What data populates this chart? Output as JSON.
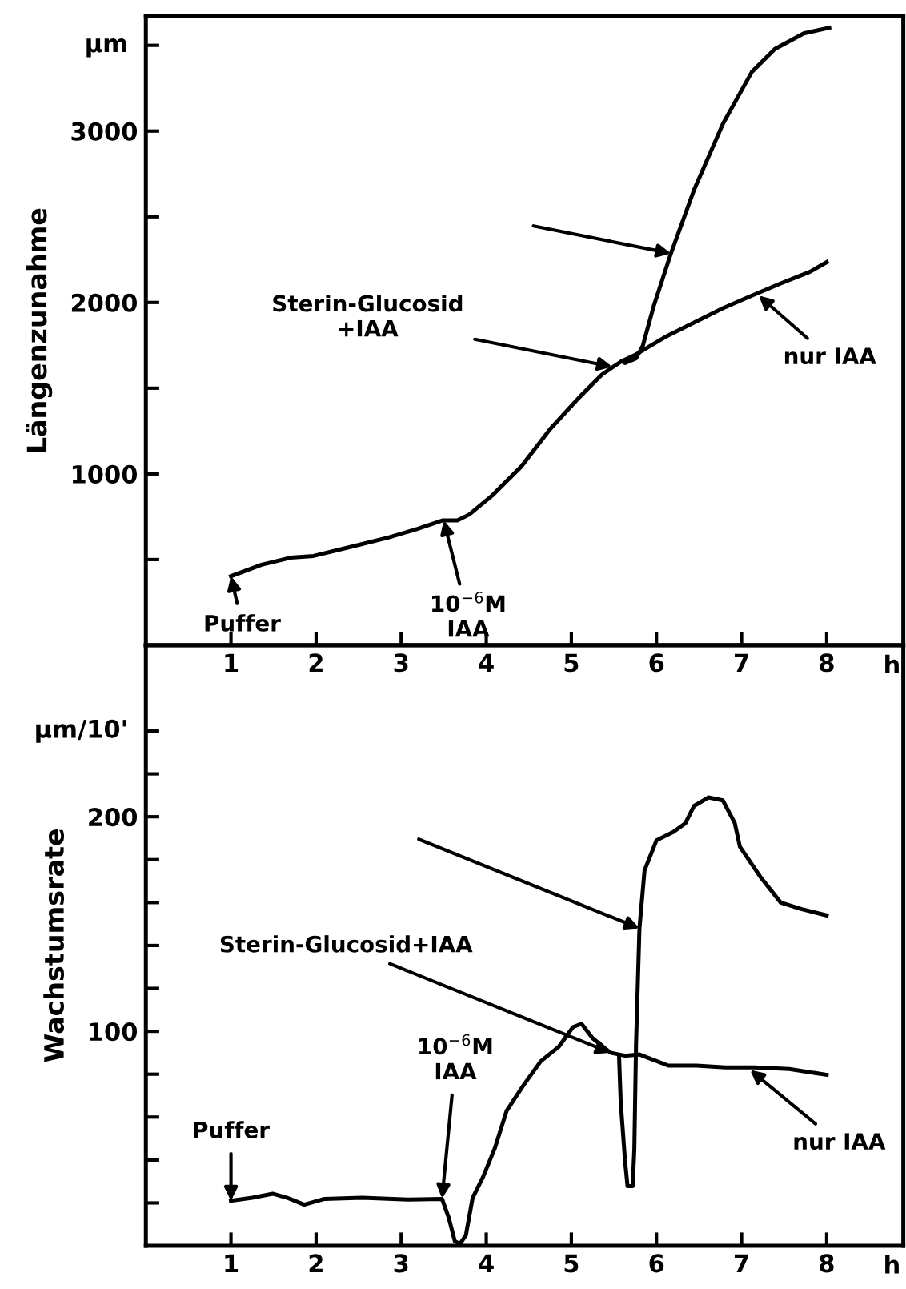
{
  "chart_data": [
    {
      "type": "line",
      "ylabel": "Längenzunahme",
      "xlabel": "h",
      "xlim": [
        0,
        8.9
      ],
      "xticks": [
        1,
        2,
        3,
        4,
        5,
        6,
        7,
        8
      ],
      "ylim": [
        0,
        3670
      ],
      "yticks": [
        {
          "value": 500,
          "label": null
        },
        1000,
        {
          "value": 1500,
          "label": null
        },
        2000,
        {
          "value": 2500,
          "label": null
        },
        3000,
        {
          "value": 3500,
          "label": null
        }
      ],
      "grid": false,
      "series": [
        {
          "color": "#000000",
          "x": [
            1,
            1.36,
            1.7,
            1.97,
            2.38,
            2.85,
            3.19,
            3.49,
            3.66,
            3.8,
            4.07,
            4.41,
            4.75,
            5.09,
            5.36,
            5.59,
            5.76,
            6.1,
            6.44,
            6.78,
            7.12,
            7.46,
            7.8,
            8.0
          ],
          "values": [
            403,
            470,
            511,
            521,
            571,
            629,
            679,
            729,
            729,
            763,
            874,
            1042,
            1261,
            1445,
            1580,
            1657,
            1697,
            1798,
            1882,
            1966,
            2040,
            2111,
            2178,
            2235
          ]
        },
        {
          "color": "#000000",
          "x": [
            5.59,
            5.63,
            5.76,
            5.84,
            5.97,
            6.17,
            6.44,
            6.78,
            7.12,
            7.39,
            7.73,
            8.03
          ],
          "values": [
            1657,
            1647,
            1674,
            1748,
            1983,
            2286,
            2655,
            3042,
            3345,
            3479,
            3570,
            3603
          ]
        }
      ],
      "annotations": [
        {
          "text": "Puffer",
          "x": 1,
          "y": 403
        },
        {
          "text": "10$^{−6}$M\nIAA",
          "x": 3.5,
          "y": 729
        },
        {
          "text": "Sterin-Glucosid\n+IAA",
          "x": 5.48,
          "y": 1625
        },
        {
          "text": "nur IAA",
          "x": 7.2,
          "y": 2040
        },
        "µm"
      ]
    },
    {
      "type": "line",
      "ylabel": "Wachstumsrate",
      "xlabel": "h",
      "xlim": [
        0,
        8.9
      ],
      "xticks": [
        1,
        2,
        3,
        4,
        5,
        6,
        7,
        8
      ],
      "ylim": [
        0,
        280
      ],
      "yticks": [
        {
          "value": 20,
          "label": null
        },
        {
          "value": 40,
          "label": null
        },
        {
          "value": 60,
          "label": null
        },
        {
          "value": 80,
          "label": null
        },
        100,
        {
          "value": 120,
          "label": null
        },
        {
          "value": 140,
          "label": null
        },
        {
          "value": 160,
          "label": null
        },
        {
          "value": 180,
          "label": null
        },
        200,
        {
          "value": 220,
          "label": null
        },
        {
          "value": 240,
          "label": null
        }
      ],
      "grid": false,
      "series": [
        {
          "color": "#000000",
          "x": [
            1,
            1.25,
            1.49,
            1.66,
            1.86,
            2.1,
            2.54,
            3.08,
            3.48,
            3.56,
            3.63,
            3.69,
            3.76,
            3.84,
            3.96,
            4.1,
            4.24,
            4.44,
            4.64,
            4.85,
            5.02,
            5.12,
            5.25,
            5.46,
            5.63,
            5.8,
            6.14,
            6.47,
            6.81,
            7.15,
            7.56,
            8.0
          ],
          "values": [
            21,
            22.4,
            24.3,
            22.4,
            19.2,
            21.9,
            22.4,
            21.6,
            21.9,
            13,
            2.2,
            0.8,
            4.9,
            22.4,
            31.9,
            45.4,
            63,
            75,
            86,
            92.7,
            102,
            103.5,
            96.8,
            90,
            88.6,
            89.2,
            84,
            84,
            83.2,
            83.2,
            82.4,
            79.7
          ]
        },
        {
          "color": "#000000",
          "x": [
            5.56,
            5.58,
            5.63,
            5.66,
            5.72,
            5.74,
            5.76,
            5.8,
            5.86,
            6.0,
            6.2,
            6.34,
            6.44,
            6.61,
            6.78,
            6.92,
            6.98,
            7.22,
            7.46,
            7.7,
            8.0
          ],
          "values": [
            89,
            67,
            40,
            27.8,
            27.8,
            45,
            94,
            148,
            175,
            189,
            193,
            197,
            205,
            209,
            207.6,
            197,
            186,
            172,
            160,
            157,
            154
          ]
        }
      ],
      "annotations": [
        {
          "text": "Puffer",
          "x": 1,
          "y": 21
        },
        {
          "text": "10$^{−6}$M\nIAA",
          "x": 3.48,
          "y": 22
        },
        {
          "text": "Sterin-Glucosid+IAA",
          "x": 5.46,
          "y": 90
        },
        {
          "text": "nur IAA",
          "x": 7.1,
          "y": 82
        },
        "µm/10'"
      ]
    }
  ]
}
